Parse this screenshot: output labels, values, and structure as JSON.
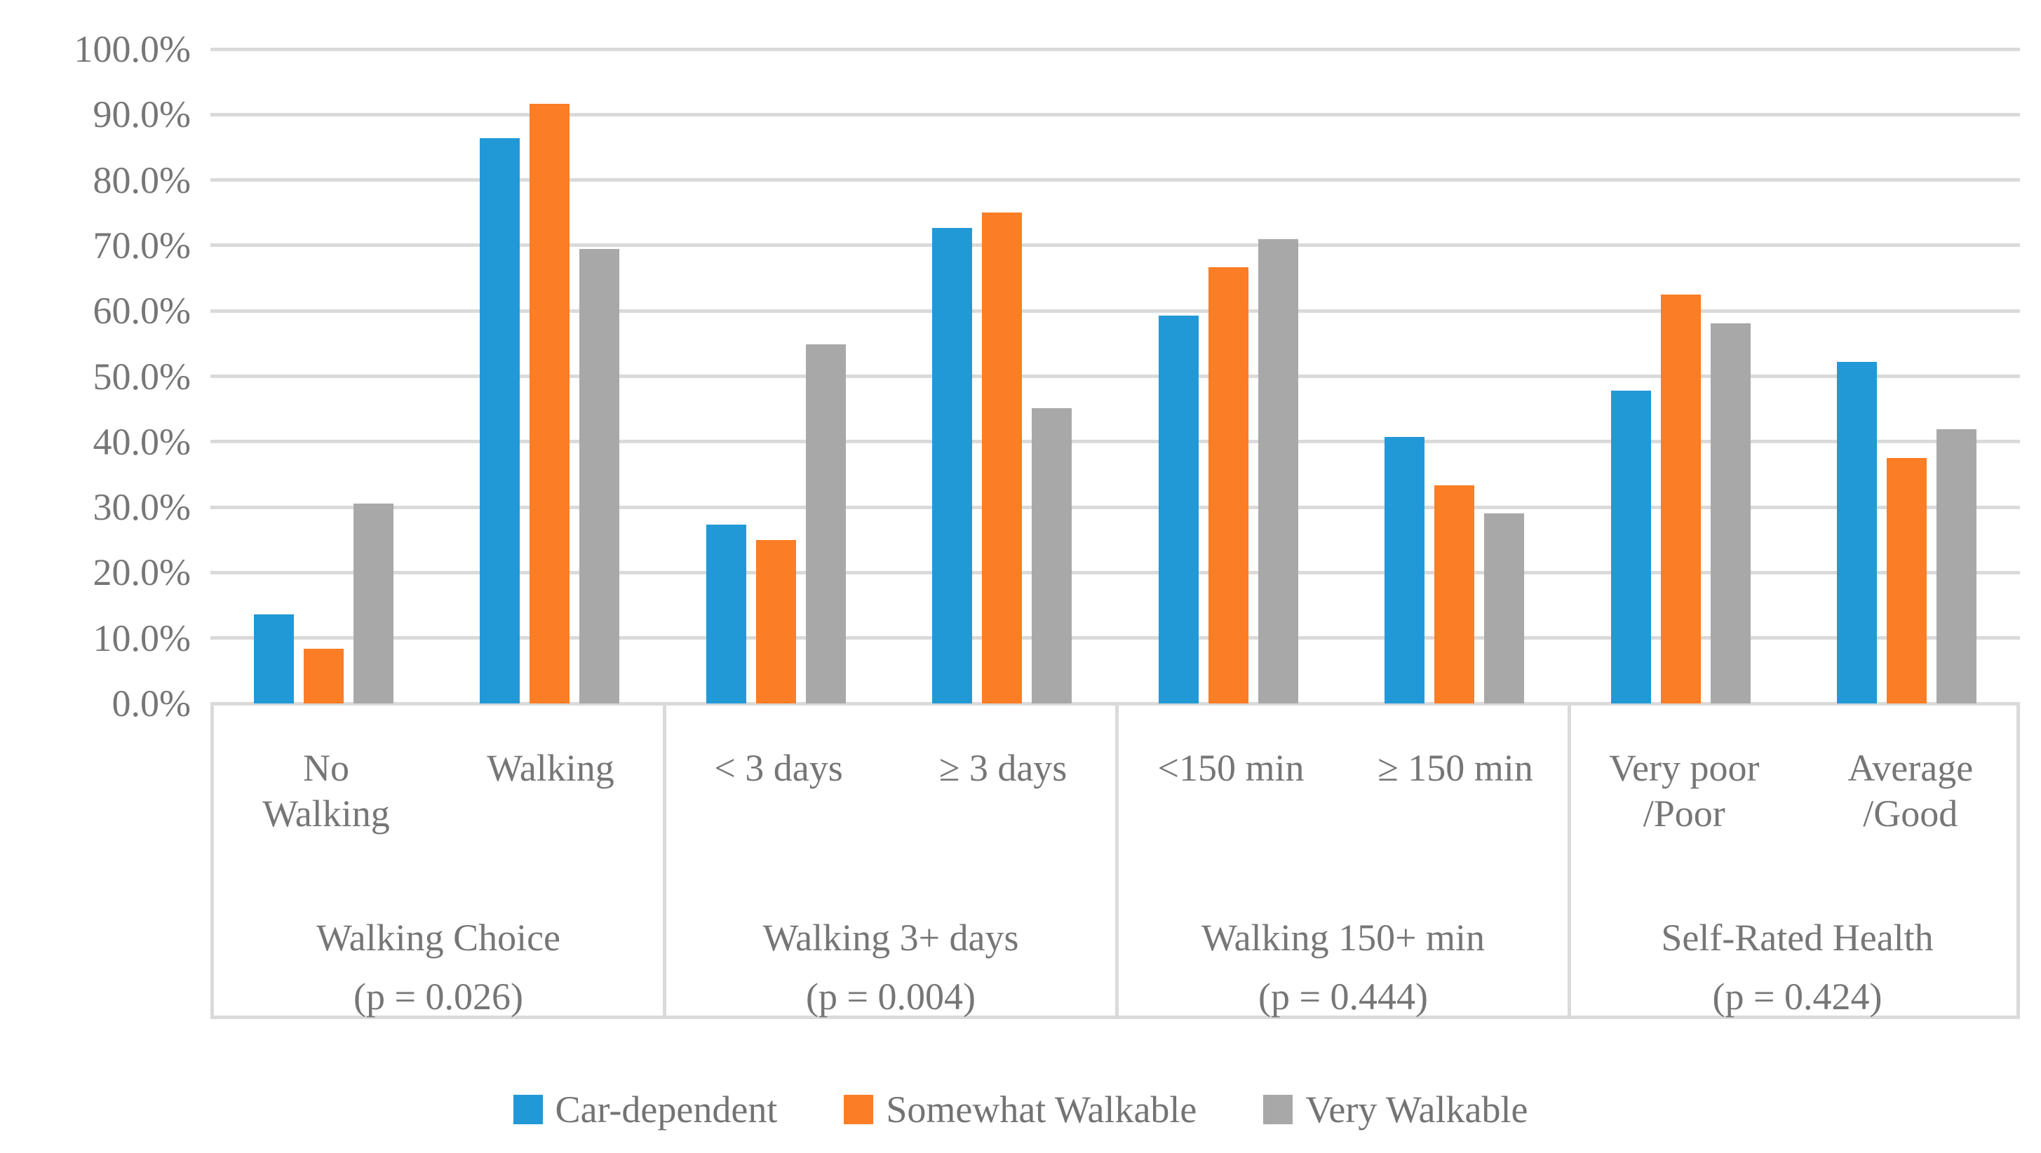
{
  "chart_data": {
    "type": "bar",
    "title": "",
    "ylabel": "",
    "xlabel": "",
    "ylim": [
      0,
      100
    ],
    "ytick_step": 10,
    "grid": true,
    "legend_position": "bottom",
    "y_ticks": [
      "100.0%",
      "90.0%",
      "80.0%",
      "70.0%",
      "60.0%",
      "50.0%",
      "40.0%",
      "30.0%",
      "20.0%",
      "10.0%",
      "0.0%"
    ],
    "categories": [
      "No\nWalking",
      "Walking",
      "< 3 days",
      "≥ 3 days",
      "<150 min",
      "≥ 150 min",
      "Very poor\n/Poor",
      "Average\n/Good"
    ],
    "groups": [
      {
        "label": "Walking Choice",
        "p": "(p = 0.026)",
        "span": 2
      },
      {
        "label": "Walking 3+ days",
        "p": "(p = 0.004)",
        "span": 2
      },
      {
        "label": "Walking 150+ min",
        "p": "(p = 0.444)",
        "span": 2
      },
      {
        "label": "Self-Rated Health",
        "p": "(p = 0.424)",
        "span": 2
      }
    ],
    "series": [
      {
        "name": "Car-dependent",
        "color": "#2199D6",
        "values": [
          13.6,
          86.4,
          27.3,
          72.7,
          59.3,
          40.7,
          47.8,
          52.2
        ]
      },
      {
        "name": "Somewhat Walkable",
        "color": "#FB7D25",
        "values": [
          8.4,
          91.6,
          25.0,
          75.0,
          66.7,
          33.3,
          62.5,
          37.5
        ]
      },
      {
        "name": "Very Walkable",
        "color": "#A8A8A8",
        "values": [
          30.6,
          69.4,
          54.9,
          45.1,
          71.0,
          29.0,
          58.1,
          41.9
        ]
      }
    ],
    "colors": {
      "gridline": "#DADADA",
      "axis_text": "#767676",
      "legend_text": "#737373",
      "background": "#FFFFFF"
    }
  }
}
